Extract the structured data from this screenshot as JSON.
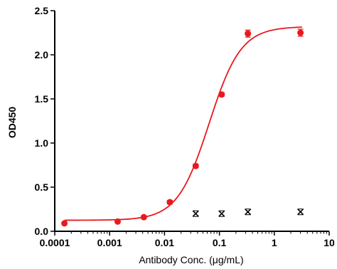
{
  "chart_data": {
    "type": "scatter",
    "xlabel": "Antibody Conc. (μg/mL)",
    "ylabel": "OD450",
    "xscale": "log",
    "xlim": [
      0.0001,
      10
    ],
    "ylim": [
      0,
      2.5
    ],
    "x_ticks": [
      0.0001,
      0.001,
      0.01,
      0.1,
      1,
      10
    ],
    "x_tick_labels": [
      "0.0001",
      "0.001",
      "0.01",
      "0.1",
      "1",
      "10"
    ],
    "y_ticks": [
      0,
      0.5,
      1,
      1.5,
      2,
      2.5
    ],
    "y_tick_labels": [
      "0.0",
      "0.5",
      "1.0",
      "1.5",
      "2.0",
      "2.5"
    ],
    "grid": false,
    "legend": "none",
    "series": [
      {
        "marker": "circle",
        "color": "#e8191e",
        "x": [
          0.00015,
          0.0014,
          0.0042,
          0.0125,
          0.037,
          0.11,
          0.33,
          3.0
        ],
        "y": [
          0.09,
          0.11,
          0.16,
          0.33,
          0.74,
          1.55,
          2.24,
          2.25
        ],
        "error": [
          0.01,
          0.01,
          0.01,
          0.02,
          0.02,
          0.02,
          0.04,
          0.04
        ]
      },
      {
        "marker": "x",
        "color": "#000000",
        "x": [
          0.037,
          0.11,
          0.33,
          3.0
        ],
        "y": [
          0.2,
          0.2,
          0.22,
          0.22
        ]
      }
    ],
    "fit": {
      "type": "4PL",
      "color": "#e8191e",
      "bottom": 0.125,
      "top": 2.32,
      "ec50": 0.065,
      "hill": 1.5
    }
  }
}
